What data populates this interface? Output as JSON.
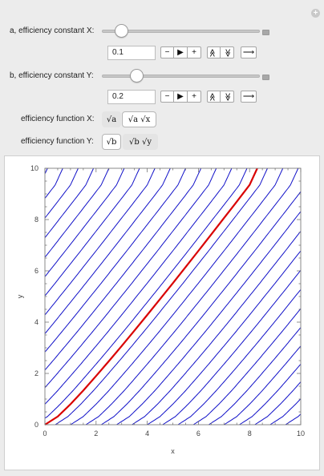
{
  "controls": {
    "slider_a": {
      "label": "a, efficiency constant X:",
      "value": "0.1",
      "fraction": 0.1
    },
    "slider_b": {
      "label": "b, efficiency constant Y:",
      "value": "0.2",
      "fraction": 0.2
    },
    "anim_buttons": {
      "minus": "−",
      "play": "▶",
      "plus": "+",
      "faster": "≫",
      "slower": "≪",
      "direction": "⟶"
    },
    "func_x": {
      "label": "efficiency function X:",
      "options": [
        "√a",
        "√a √x"
      ],
      "selected": 1
    },
    "func_y": {
      "label": "efficiency function Y:",
      "options": [
        "√b",
        "√b √y"
      ],
      "selected": 0
    }
  },
  "chart_data": {
    "type": "line",
    "title": "",
    "xlabel": "x",
    "ylabel": "y",
    "xlim": [
      0,
      10
    ],
    "ylim": [
      0,
      10
    ],
    "x_ticks": [
      "0",
      "2",
      "4",
      "6",
      "8",
      "10"
    ],
    "y_ticks": [
      "0",
      "2",
      "4",
      "6",
      "8",
      "10"
    ],
    "grid": false,
    "series": [
      {
        "color": "#d90000",
        "role": "highlighted contour",
        "x": [
          0,
          0.5,
          1,
          1.5,
          2,
          2.5,
          3,
          3.5,
          4,
          4.5,
          5,
          5.5,
          6,
          6.5,
          7,
          7.5,
          8,
          8.3
        ],
        "y": [
          0,
          0.32,
          0.8,
          1.33,
          1.9,
          2.48,
          3.07,
          3.67,
          4.28,
          4.9,
          5.52,
          6.15,
          6.78,
          7.42,
          8.06,
          8.7,
          9.35,
          10
        ]
      }
    ],
    "contour_family": {
      "color": "#1010c8",
      "offsets": [
        -9.5,
        -8.8,
        -8.2,
        -7.6,
        -7.0,
        -6.4,
        -5.8,
        -5.2,
        -4.6,
        -4.0,
        -3.4,
        -2.8,
        -2.2,
        -1.6,
        -1.0,
        -0.4,
        0.4,
        1.0,
        1.6,
        2.2,
        2.8,
        3.4,
        4.0,
        4.6,
        5.2,
        5.8,
        6.4,
        7.0,
        7.6,
        8.2,
        8.8,
        9.4
      ]
    }
  }
}
